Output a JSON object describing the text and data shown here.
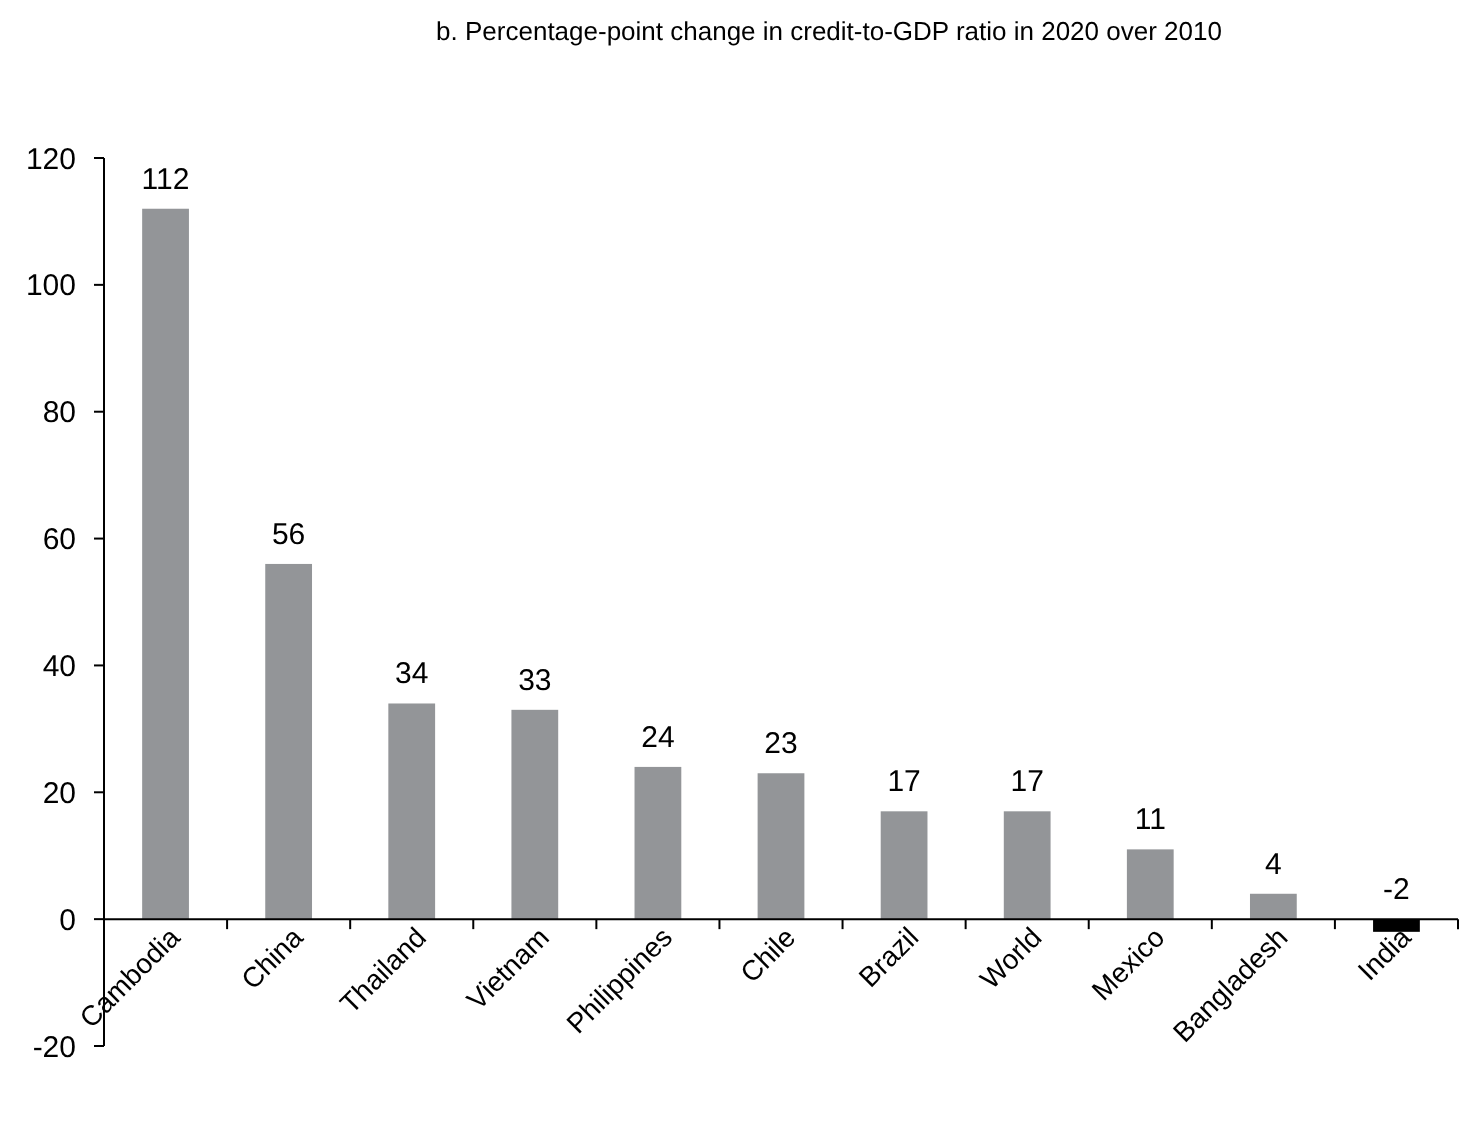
{
  "chart_data": {
    "type": "bar",
    "title": "b. Percentage-point change in credit-to-GDP ratio in 2020 over 2010",
    "categories": [
      "Cambodia",
      "China",
      "Thailand",
      "Vietnam",
      "Philippines",
      "Chile",
      "Brazil",
      "World",
      "Mexico",
      "Bangladesh",
      "India"
    ],
    "values": [
      112,
      56,
      34,
      33,
      24,
      23,
      17,
      17,
      11,
      4,
      -2
    ],
    "colors": [
      "#939598",
      "#939598",
      "#939598",
      "#939598",
      "#939598",
      "#939598",
      "#939598",
      "#939598",
      "#939598",
      "#939598",
      "#000000"
    ],
    "ylim": [
      -20,
      120
    ],
    "yticks": [
      -20,
      0,
      20,
      40,
      60,
      80,
      100,
      120
    ],
    "grid": false,
    "data_labels": true
  }
}
